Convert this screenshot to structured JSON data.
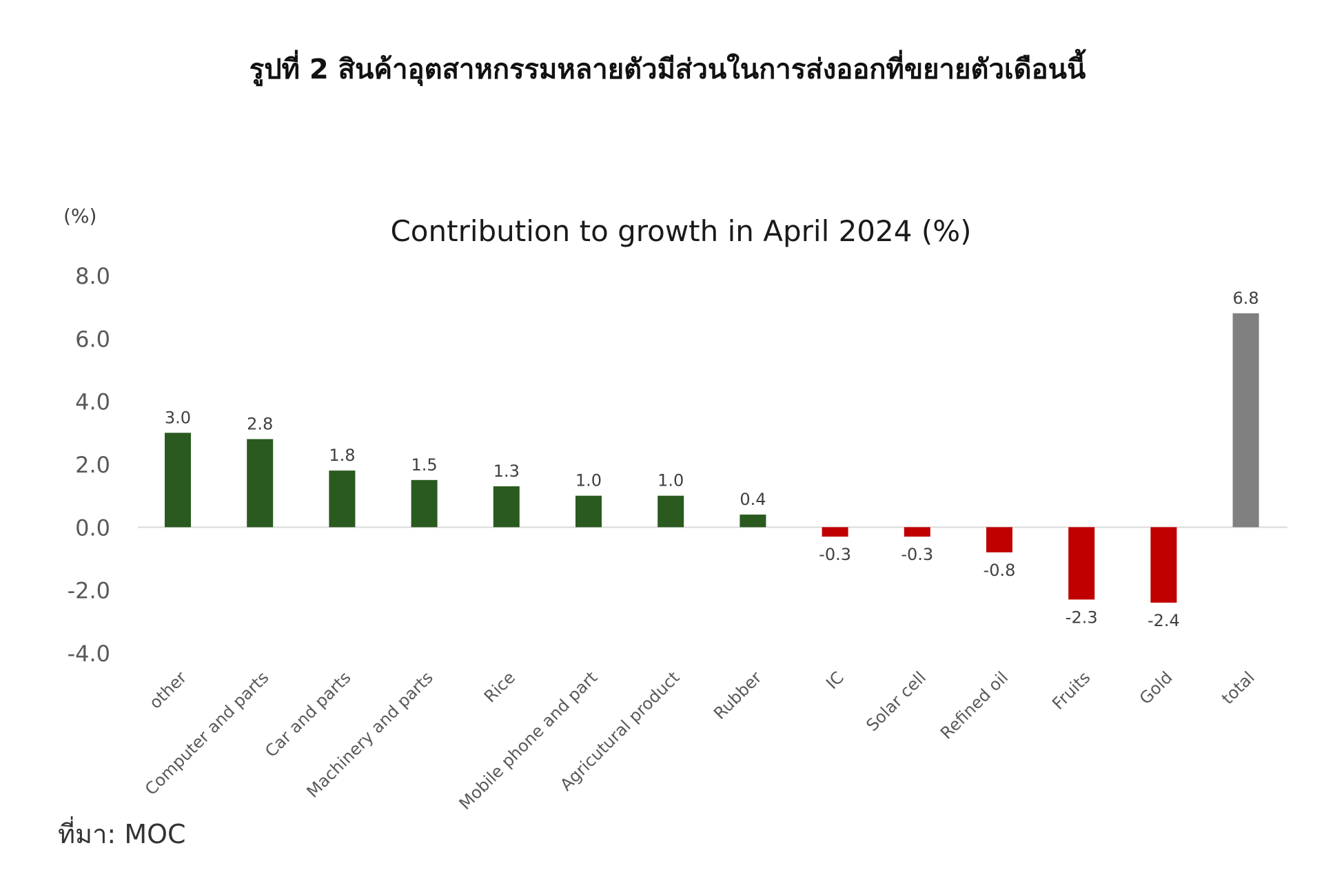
{
  "figure_title": "รูปที่ 2 สินค้าอุตสาหกรรมหลายตัวมีส่วนในการส่งออกที่ขยายตัวเดือนนี้",
  "source": "ที่มา: MOC",
  "colors": {
    "positive": "#2a5a1f",
    "negative": "#c00000",
    "total": "#808080",
    "axis": "#d9d9d9"
  },
  "chart_data": {
    "type": "bar",
    "title": "Contribution to growth in April 2024 (%)",
    "unit_label": "(%)",
    "ylim": [
      -4.0,
      8.0
    ],
    "yticks": [
      "8.0",
      "6.0",
      "4.0",
      "2.0",
      "0.0",
      "-2.0",
      "-4.0"
    ],
    "categories": [
      "other",
      "Computer and parts",
      "Car and parts",
      "Machinery and parts",
      "Rice",
      "Mobile phone and part",
      "Agricutural product",
      "Rubber",
      "IC",
      "Solar cell",
      "Refined oil",
      "Fruits",
      "Gold",
      "total"
    ],
    "values": [
      3.0,
      2.8,
      1.8,
      1.5,
      1.3,
      1.0,
      1.0,
      0.4,
      -0.3,
      -0.3,
      -0.8,
      -2.3,
      -2.4,
      6.8
    ],
    "data_labels": [
      "3.0",
      "2.8",
      "1.8",
      "1.5",
      "1.3",
      "1.0",
      "1.0",
      "0.4",
      "-0.3",
      "-0.3",
      "-0.8",
      "-2.3",
      "-2.4",
      "6.8"
    ]
  }
}
